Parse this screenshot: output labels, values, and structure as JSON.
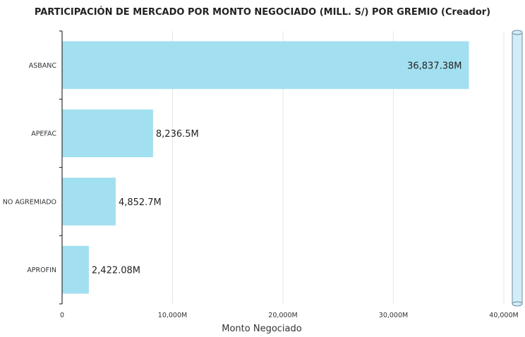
{
  "chart_data": {
    "type": "bar",
    "orientation": "horizontal",
    "title": "PARTICIPACIÓN DE MERCADO POR MONTO NEGOCIADO (MILL. S/) POR GREMIO (Creador)",
    "xlabel": "Monto Negociado",
    "ylabel": "",
    "categories": [
      "ASBANC",
      "APEFAC",
      "NO AGREMIADO",
      "APROFIN"
    ],
    "values": [
      36837.38,
      8236.5,
      4852.7,
      2422.08
    ],
    "data_labels": [
      "36,837.38M",
      "8,236.5M",
      "4,852.7M",
      "2,422.08M"
    ],
    "xlim": [
      0,
      40000
    ],
    "x_ticks": [
      0,
      10000,
      20000,
      30000,
      40000
    ],
    "x_tick_labels": [
      "0",
      "10,000M",
      "20,000M",
      "30,000M",
      "40,000M"
    ],
    "grid": "vertical",
    "bar_color": "#a2dff0",
    "scrollbar_color": "#d3ecf8"
  }
}
